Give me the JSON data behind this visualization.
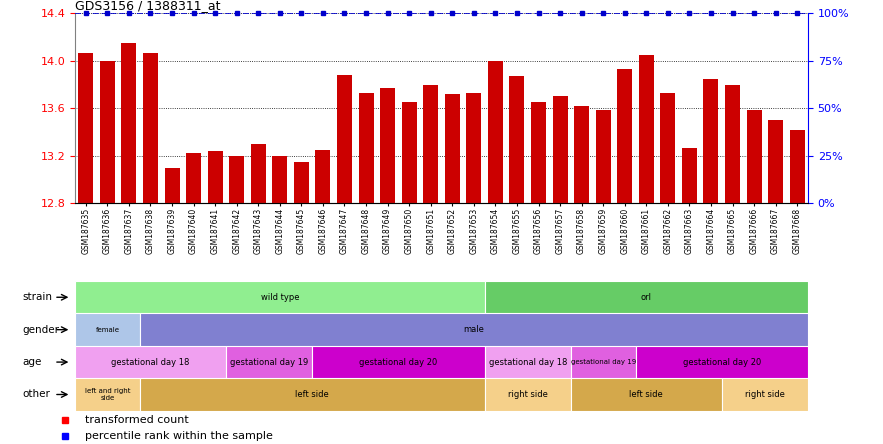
{
  "title": "GDS3156 / 1388311_at",
  "samples": [
    "GSM187635",
    "GSM187636",
    "GSM187637",
    "GSM187638",
    "GSM187639",
    "GSM187640",
    "GSM187641",
    "GSM187642",
    "GSM187643",
    "GSM187644",
    "GSM187645",
    "GSM187646",
    "GSM187647",
    "GSM187648",
    "GSM187649",
    "GSM187650",
    "GSM187651",
    "GSM187652",
    "GSM187653",
    "GSM187654",
    "GSM187655",
    "GSM187656",
    "GSM187657",
    "GSM187658",
    "GSM187659",
    "GSM187660",
    "GSM187661",
    "GSM187662",
    "GSM187663",
    "GSM187664",
    "GSM187665",
    "GSM187666",
    "GSM187667",
    "GSM187668"
  ],
  "values": [
    14.07,
    14.0,
    14.15,
    14.07,
    13.1,
    13.22,
    13.24,
    13.2,
    13.3,
    13.2,
    13.15,
    13.25,
    13.88,
    13.73,
    13.77,
    13.65,
    13.8,
    13.72,
    13.73,
    14.0,
    13.87,
    13.65,
    13.7,
    13.62,
    13.59,
    13.93,
    14.05,
    13.73,
    13.27,
    13.85,
    13.8,
    13.59,
    13.5,
    13.42
  ],
  "bar_color": "#cc0000",
  "percentile_color": "#0000cc",
  "ylim": [
    12.8,
    14.4
  ],
  "yticks": [
    12.8,
    13.2,
    13.6,
    14.0,
    14.4
  ],
  "right_yticks": [
    0,
    25,
    50,
    75,
    100
  ],
  "right_ylabel_labels": [
    "0%",
    "25%",
    "50%",
    "75%",
    "100%"
  ],
  "legend_red": "transformed count",
  "legend_blue": "percentile rank within the sample",
  "rows": [
    {
      "label": "strain",
      "segments": [
        {
          "text": "wild type",
          "start": 0,
          "end": 19,
          "color": "#90ee90"
        },
        {
          "text": "orl",
          "start": 19,
          "end": 34,
          "color": "#66cc66"
        }
      ]
    },
    {
      "label": "gender",
      "segments": [
        {
          "text": "female",
          "start": 0,
          "end": 3,
          "color": "#aec6e8"
        },
        {
          "text": "male",
          "start": 3,
          "end": 34,
          "color": "#8080d0"
        }
      ]
    },
    {
      "label": "age",
      "segments": [
        {
          "text": "gestational day 18",
          "start": 0,
          "end": 7,
          "color": "#f0a0f0"
        },
        {
          "text": "gestational day 19",
          "start": 7,
          "end": 11,
          "color": "#e060e0"
        },
        {
          "text": "gestational day 20",
          "start": 11,
          "end": 19,
          "color": "#cc00cc"
        },
        {
          "text": "gestational day 18",
          "start": 19,
          "end": 23,
          "color": "#f0a0f0"
        },
        {
          "text": "gestational day 19",
          "start": 23,
          "end": 26,
          "color": "#e060e0"
        },
        {
          "text": "gestational day 20",
          "start": 26,
          "end": 34,
          "color": "#cc00cc"
        }
      ]
    },
    {
      "label": "other",
      "segments": [
        {
          "text": "left and right\nside",
          "start": 0,
          "end": 3,
          "color": "#f5d08a"
        },
        {
          "text": "left side",
          "start": 3,
          "end": 19,
          "color": "#d4a84b"
        },
        {
          "text": "right side",
          "start": 19,
          "end": 23,
          "color": "#f5d08a"
        },
        {
          "text": "left side",
          "start": 23,
          "end": 30,
          "color": "#d4a84b"
        },
        {
          "text": "right side",
          "start": 30,
          "end": 34,
          "color": "#f5d08a"
        }
      ]
    }
  ]
}
